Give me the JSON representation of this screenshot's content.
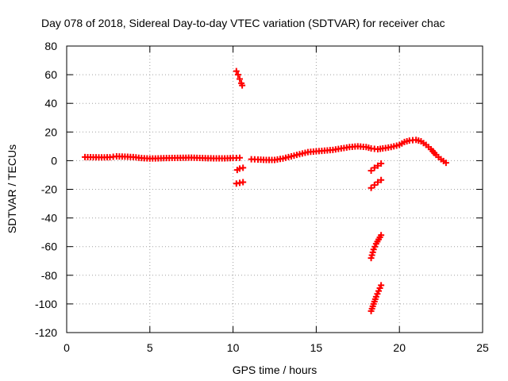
{
  "chart_data": {
    "type": "scatter",
    "title": "Day 078 of 2018, Sidereal Day-to-day VTEC variation (SDTVAR) for receiver chac",
    "xlabel": "GPS time / hours",
    "ylabel": "SDTVAR / TECUs",
    "xlim": [
      0,
      25
    ],
    "ylim": [
      -120,
      80
    ],
    "xticks": [
      0,
      5,
      10,
      15,
      20,
      25
    ],
    "yticks": [
      -120,
      -100,
      -80,
      -60,
      -40,
      -20,
      0,
      20,
      40,
      60,
      80
    ],
    "grid": true,
    "marker": "plus",
    "color": "#ff0000",
    "series": [
      {
        "name": "main-track",
        "points": [
          [
            1.1,
            2.5
          ],
          [
            1.6,
            2.4
          ],
          [
            2.1,
            2.3
          ],
          [
            2.6,
            2.4
          ],
          [
            3.0,
            3.0
          ],
          [
            3.5,
            2.8
          ],
          [
            4.0,
            2.5
          ],
          [
            4.5,
            1.8
          ],
          [
            5.0,
            1.5
          ],
          [
            5.5,
            1.6
          ],
          [
            6.0,
            1.8
          ],
          [
            6.5,
            1.9
          ],
          [
            7.0,
            2.0
          ],
          [
            7.5,
            2.1
          ],
          [
            8.0,
            1.9
          ],
          [
            8.5,
            1.7
          ],
          [
            9.0,
            1.6
          ],
          [
            9.5,
            1.6
          ],
          [
            10.0,
            1.8
          ],
          [
            10.4,
            2.0
          ]
        ]
      },
      {
        "name": "segment-10h-high",
        "points": [
          [
            10.2,
            62.5
          ],
          [
            10.3,
            60.0
          ],
          [
            10.4,
            57.0
          ],
          [
            10.5,
            54.0
          ],
          [
            10.55,
            52.5
          ]
        ]
      },
      {
        "name": "segment-10h-neg5",
        "points": [
          [
            10.25,
            -6.5
          ],
          [
            10.4,
            -5.5
          ],
          [
            10.6,
            -5.0
          ]
        ]
      },
      {
        "name": "segment-10h-neg15",
        "points": [
          [
            10.2,
            -16.0
          ],
          [
            10.4,
            -15.5
          ],
          [
            10.6,
            -15.0
          ]
        ]
      },
      {
        "name": "main-track-2",
        "points": [
          [
            11.1,
            1.0
          ],
          [
            11.5,
            0.8
          ],
          [
            12.0,
            0.5
          ],
          [
            12.5,
            0.5
          ],
          [
            13.0,
            1.5
          ],
          [
            13.5,
            3.0
          ],
          [
            14.0,
            4.5
          ],
          [
            14.5,
            6.0
          ],
          [
            15.0,
            6.5
          ],
          [
            15.5,
            7.0
          ],
          [
            16.0,
            7.5
          ],
          [
            16.5,
            8.5
          ],
          [
            17.0,
            9.5
          ],
          [
            17.5,
            10.0
          ],
          [
            18.0,
            9.5
          ],
          [
            18.3,
            8.5
          ],
          [
            18.7,
            8.0
          ],
          [
            19.0,
            8.5
          ],
          [
            19.5,
            9.5
          ],
          [
            20.0,
            11.0
          ],
          [
            20.3,
            13.0
          ],
          [
            20.6,
            14.0
          ],
          [
            21.0,
            14.5
          ],
          [
            21.3,
            13.5
          ],
          [
            21.6,
            11.0
          ],
          [
            21.9,
            8.0
          ],
          [
            22.2,
            4.0
          ],
          [
            22.5,
            1.0
          ],
          [
            22.8,
            -1.5
          ]
        ]
      },
      {
        "name": "segment-19h-a",
        "points": [
          [
            18.3,
            -7.0
          ],
          [
            18.5,
            -5.0
          ],
          [
            18.7,
            -3.5
          ],
          [
            18.9,
            -2.0
          ]
        ]
      },
      {
        "name": "segment-19h-b",
        "points": [
          [
            18.3,
            -19.0
          ],
          [
            18.5,
            -17.0
          ],
          [
            18.7,
            -15.0
          ],
          [
            18.9,
            -13.5
          ]
        ]
      },
      {
        "name": "segment-19h-c",
        "points": [
          [
            18.3,
            -68.0
          ],
          [
            18.45,
            -62.0
          ],
          [
            18.6,
            -58.0
          ],
          [
            18.75,
            -55.0
          ],
          [
            18.9,
            -52.0
          ]
        ]
      },
      {
        "name": "segment-19h-d",
        "points": [
          [
            18.3,
            -105.0
          ],
          [
            18.45,
            -100.0
          ],
          [
            18.6,
            -95.0
          ],
          [
            18.75,
            -91.0
          ],
          [
            18.9,
            -87.0
          ]
        ]
      }
    ]
  }
}
